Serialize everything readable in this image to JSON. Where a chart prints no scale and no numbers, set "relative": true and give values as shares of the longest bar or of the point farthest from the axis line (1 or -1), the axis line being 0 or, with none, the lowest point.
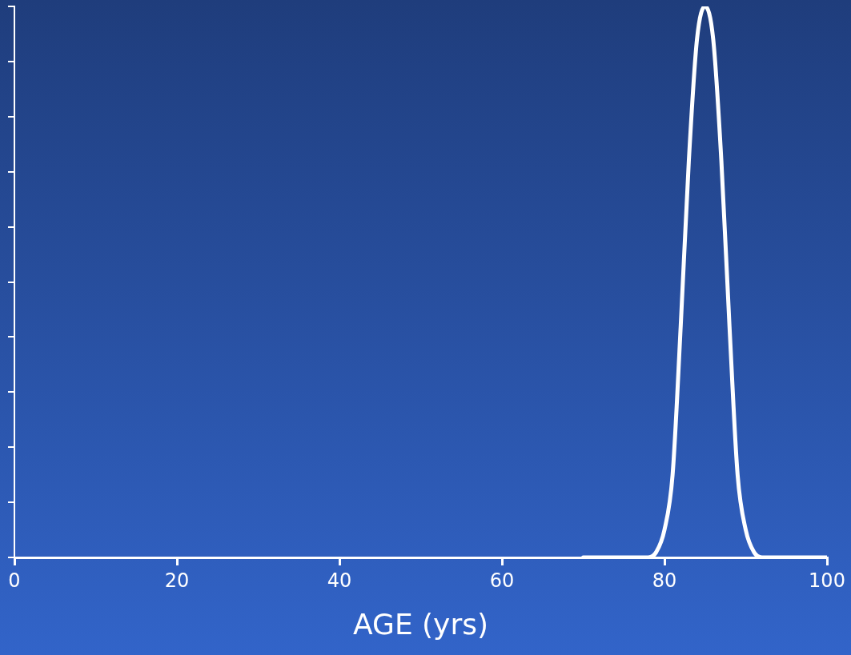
{
  "chart_data": {
    "type": "line",
    "xlabel": "AGE (yrs)",
    "relative": true,
    "xlim": [
      0,
      100
    ],
    "xticks": [
      0,
      20,
      40,
      60,
      80,
      100
    ],
    "tick_labels": "x",
    "grid": false,
    "legend": false,
    "marker": "none",
    "line_style": "solid",
    "series": [
      {
        "color": "#ffffff",
        "x": [
          70,
          78,
          79,
          80,
          81,
          82,
          83,
          84,
          85,
          86,
          87,
          88,
          89,
          90,
          91,
          92,
          100
        ],
        "values": [
          0,
          0,
          0.01,
          0.05,
          0.15,
          0.42,
          0.72,
          0.94,
          1,
          0.94,
          0.72,
          0.42,
          0.15,
          0.05,
          0.01,
          0,
          0
        ]
      }
    ]
  }
}
